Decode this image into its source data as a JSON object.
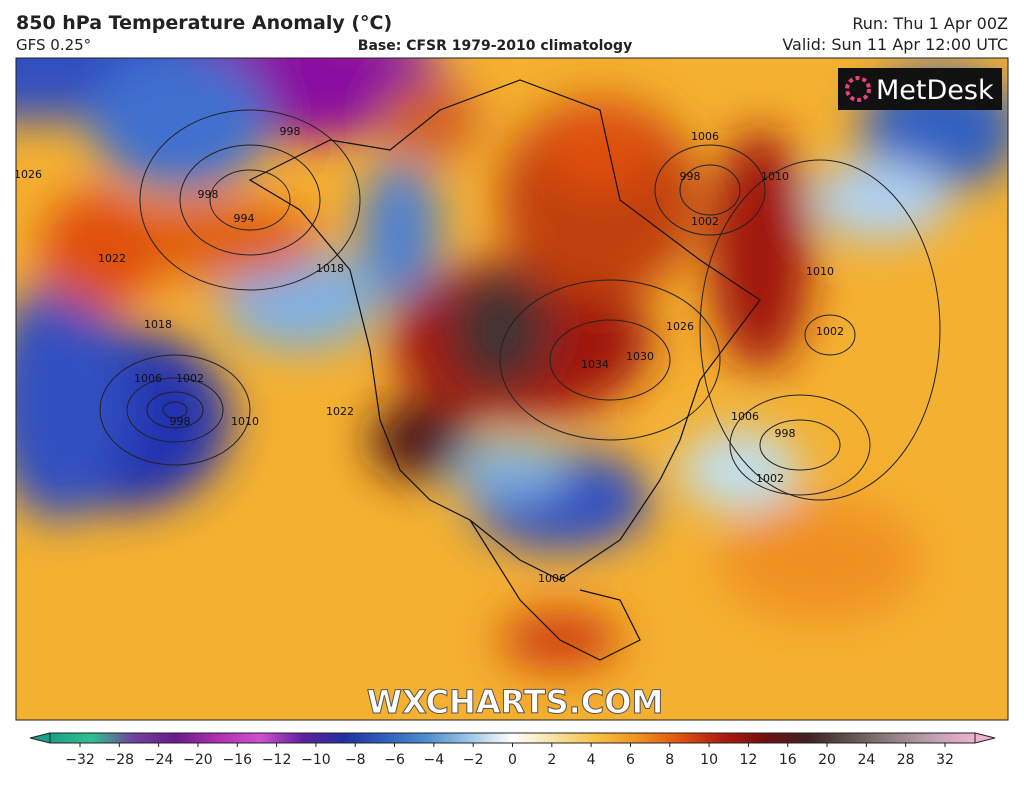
{
  "header": {
    "title": "850 hPa Temperature Anomaly (°C)",
    "model": "GFS 0.25°",
    "base": "Base: CFSR 1979-2010 climatology",
    "run": "Run: Thu 1 Apr 00Z",
    "valid": "Valid: Sun 11 Apr 12:00 UTC"
  },
  "logo": "MetDesk",
  "watermark": "WXCHARTS.COM",
  "colorbar": {
    "ticks": [
      {
        "value": -32,
        "label": "−32"
      },
      {
        "value": -28,
        "label": "−28"
      },
      {
        "value": -24,
        "label": "−24"
      },
      {
        "value": -20,
        "label": "−20"
      },
      {
        "value": -16,
        "label": "−16"
      },
      {
        "value": -12,
        "label": "−12"
      },
      {
        "value": -10,
        "label": "−10"
      },
      {
        "value": -8,
        "label": "−8"
      },
      {
        "value": -6,
        "label": "−6"
      },
      {
        "value": -4,
        "label": "−4"
      },
      {
        "value": -2,
        "label": "−2"
      },
      0,
      2,
      4,
      6,
      8,
      10,
      12,
      16,
      20,
      24,
      28,
      32
    ]
  },
  "isobar_labels": [
    "1026",
    "1022",
    "1018",
    "998",
    "994",
    "998",
    "1018",
    "1006",
    "1002",
    "998",
    "1010",
    "1022",
    "1034",
    "1030",
    "1026",
    "1006",
    "998",
    "1002",
    "1010",
    "1002",
    "1006",
    "998",
    "1002",
    "1006",
    "1010"
  ]
}
